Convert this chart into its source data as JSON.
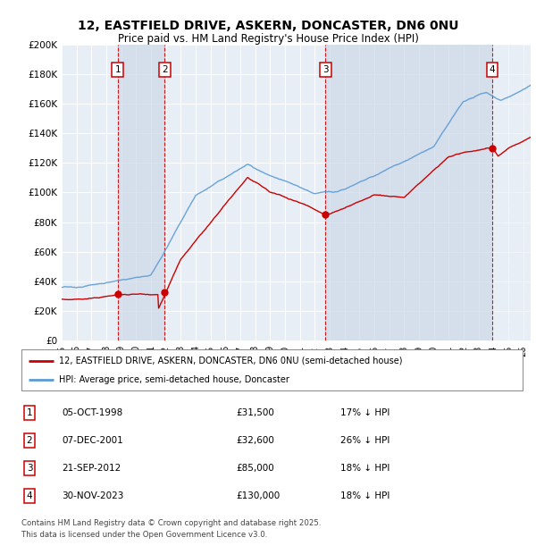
{
  "title1": "12, EASTFIELD DRIVE, ASKERN, DONCASTER, DN6 0NU",
  "title2": "Price paid vs. HM Land Registry's House Price Index (HPI)",
  "ylim": [
    0,
    200000
  ],
  "yticks": [
    0,
    20000,
    40000,
    60000,
    80000,
    100000,
    120000,
    140000,
    160000,
    180000,
    200000
  ],
  "ytick_labels": [
    "£0",
    "£20K",
    "£40K",
    "£60K",
    "£80K",
    "£100K",
    "£120K",
    "£140K",
    "£160K",
    "£180K",
    "£200K"
  ],
  "xlim_start": 1995.0,
  "xlim_end": 2026.5,
  "xticks": [
    1995,
    1996,
    1997,
    1998,
    1999,
    2000,
    2001,
    2002,
    2003,
    2004,
    2005,
    2006,
    2007,
    2008,
    2009,
    2010,
    2011,
    2012,
    2013,
    2014,
    2015,
    2016,
    2017,
    2018,
    2019,
    2020,
    2021,
    2022,
    2023,
    2024,
    2025,
    2026
  ],
  "xtick_labels": [
    "95",
    "96",
    "97",
    "98",
    "99",
    "00",
    "01",
    "02",
    "03",
    "04",
    "05",
    "06",
    "07",
    "08",
    "09",
    "10",
    "11",
    "12",
    "13",
    "14",
    "15",
    "16",
    "17",
    "18",
    "19",
    "20",
    "21",
    "22",
    "23",
    "24",
    "25",
    "26"
  ],
  "sale_points": [
    {
      "num": 1,
      "year": 1998.76,
      "price": 31500,
      "date": "05-OCT-1998",
      "price_str": "£31,500",
      "pct": "17%",
      "direction": "↓"
    },
    {
      "num": 2,
      "year": 2001.93,
      "price": 32600,
      "date": "07-DEC-2001",
      "price_str": "£32,600",
      "pct": "26%",
      "direction": "↓"
    },
    {
      "num": 3,
      "year": 2012.72,
      "price": 85000,
      "date": "21-SEP-2012",
      "price_str": "£85,000",
      "pct": "18%",
      "direction": "↓"
    },
    {
      "num": 4,
      "year": 2023.92,
      "price": 130000,
      "date": "30-NOV-2023",
      "price_str": "£130,000",
      "pct": "18%",
      "direction": "↓"
    }
  ],
  "red_color": "#cc0000",
  "blue_color": "#5b9bd5",
  "vline_color": "#cc0000",
  "plot_bg": "#e8eef5",
  "grid_color": "#ffffff",
  "shade_color": "#cdd8e8",
  "legend_line1": "12, EASTFIELD DRIVE, ASKERN, DONCASTER, DN6 0NU (semi-detached house)",
  "legend_line2": "HPI: Average price, semi-detached house, Doncaster",
  "footer1": "Contains HM Land Registry data © Crown copyright and database right 2025.",
  "footer2": "This data is licensed under the Open Government Licence v3.0."
}
